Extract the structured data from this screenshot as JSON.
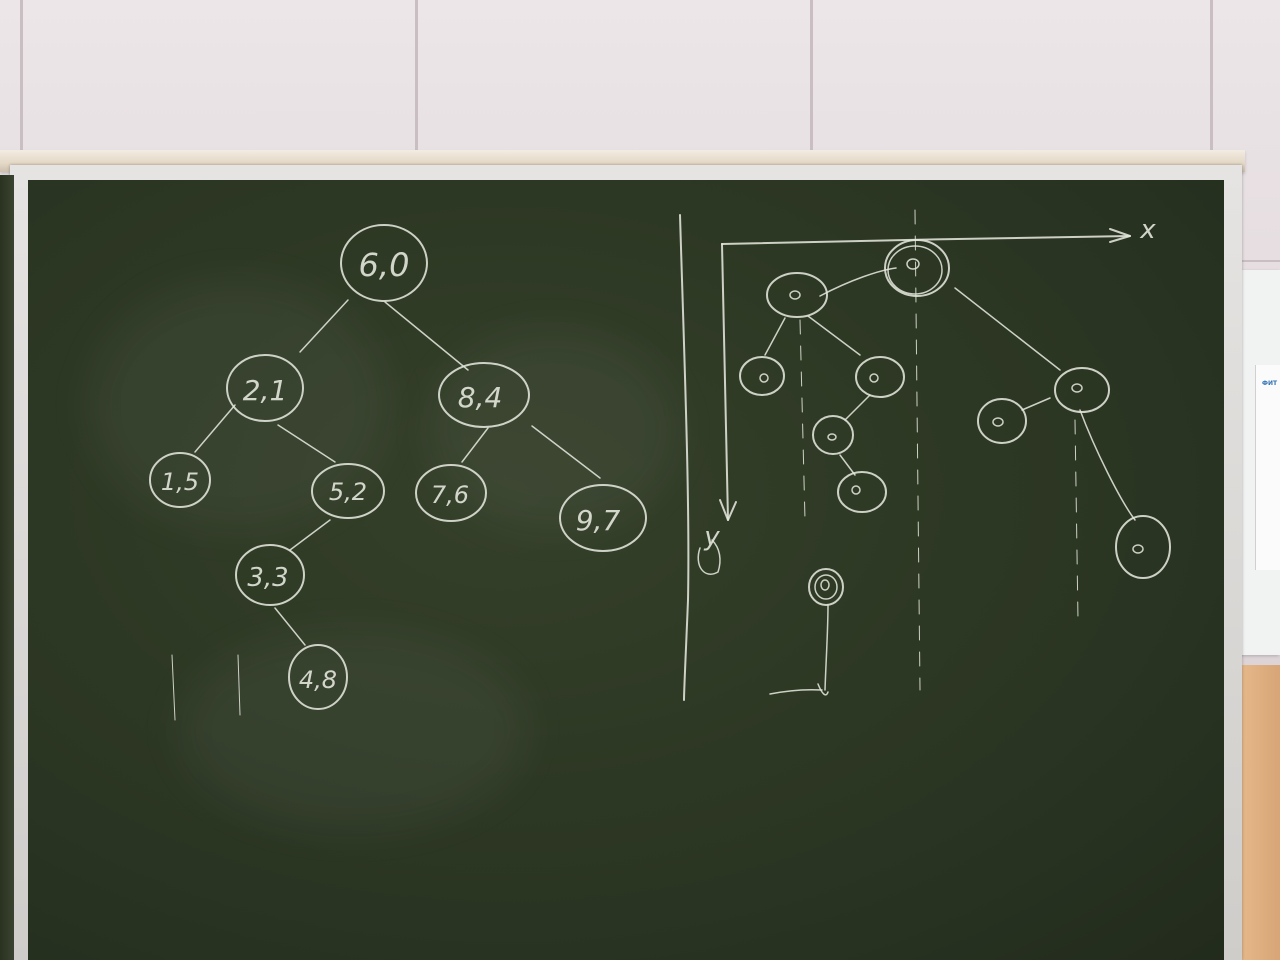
{
  "left_tree": {
    "root": "6,0",
    "nodes": [
      "6,0",
      "2,1",
      "8,4",
      "1,5",
      "5,2",
      "7,6",
      "9,7",
      "3,3",
      "4,8"
    ]
  },
  "right_plot": {
    "x_axis_label": "x",
    "y_axis_label": "y"
  },
  "notice_sheet": {
    "logo_text": "ФИТ"
  }
}
